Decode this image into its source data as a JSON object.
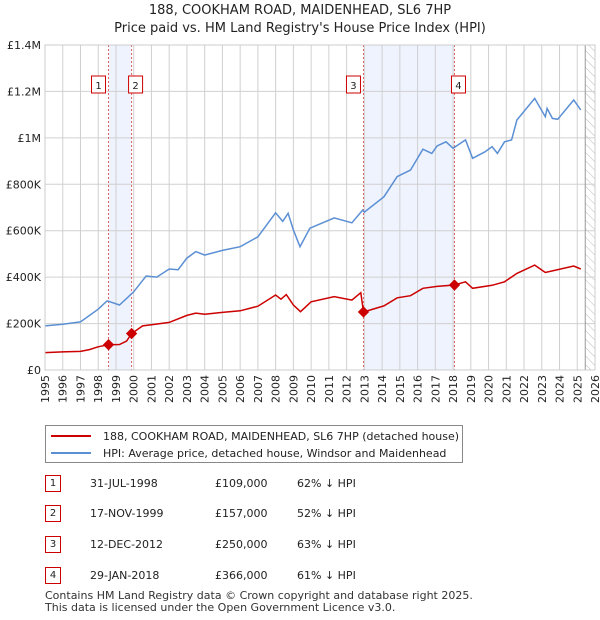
{
  "chart_data": {
    "type": "line",
    "title": "188, COOKHAM ROAD, MAIDENHEAD, SL6 7HP",
    "subtitle": "Price paid vs. HM Land Registry's House Price Index (HPI)",
    "xlim": [
      1995,
      2026
    ],
    "ylim": [
      0,
      1400000
    ],
    "x_ticks": [
      "1995",
      "1996",
      "1997",
      "1998",
      "1999",
      "2000",
      "2001",
      "2002",
      "2003",
      "2004",
      "2005",
      "2006",
      "2007",
      "2008",
      "2009",
      "2010",
      "2011",
      "2012",
      "2013",
      "2014",
      "2015",
      "2016",
      "2017",
      "2018",
      "2019",
      "2020",
      "2021",
      "2022",
      "2023",
      "2024",
      "2025",
      "2026"
    ],
    "y_ticks": [
      {
        "v": 0,
        "label": "£0"
      },
      {
        "v": 200000,
        "label": "£200K"
      },
      {
        "v": 400000,
        "label": "£400K"
      },
      {
        "v": 600000,
        "label": "£600K"
      },
      {
        "v": 800000,
        "label": "£800K"
      },
      {
        "v": 1000000,
        "label": "£1M"
      },
      {
        "v": 1200000,
        "label": "£1.2M"
      },
      {
        "v": 1400000,
        "label": "£1.4M"
      }
    ],
    "grid": true,
    "forecast_hatch_from": 2025.45,
    "series": [
      {
        "name": "188, COOKHAM ROAD, MAIDENHEAD, SL6 7HP (detached house)",
        "color": "#cc0000",
        "points": [
          [
            1995,
            75000
          ],
          [
            1996,
            78000
          ],
          [
            1997,
            80000
          ],
          [
            1997.5,
            88000
          ],
          [
            1998,
            100000
          ],
          [
            1998.58,
            109000
          ],
          [
            1999.2,
            110000
          ],
          [
            1999.6,
            125000
          ],
          [
            1999.88,
            157000
          ],
          [
            2000.5,
            190000
          ],
          [
            2001,
            195000
          ],
          [
            2002,
            205000
          ],
          [
            2003,
            235000
          ],
          [
            2003.5,
            245000
          ],
          [
            2004,
            240000
          ],
          [
            2005,
            248000
          ],
          [
            2006,
            255000
          ],
          [
            2007,
            275000
          ],
          [
            2008,
            323000
          ],
          [
            2008.3,
            305000
          ],
          [
            2008.6,
            325000
          ],
          [
            2009,
            280000
          ],
          [
            2009.4,
            251000
          ],
          [
            2010,
            294000
          ],
          [
            2011.3,
            316000
          ],
          [
            2012.3,
            301000
          ],
          [
            2012.8,
            333000
          ],
          [
            2012.95,
            250000
          ],
          [
            2014.1,
            276000
          ],
          [
            2014.85,
            311000
          ],
          [
            2015.6,
            320000
          ],
          [
            2016.3,
            352000
          ],
          [
            2017.1,
            360000
          ],
          [
            2018.08,
            366000
          ],
          [
            2018.7,
            380000
          ],
          [
            2019.1,
            352000
          ],
          [
            2020.2,
            365000
          ],
          [
            2020.9,
            380000
          ],
          [
            2021.6,
            416000
          ],
          [
            2022.6,
            452000
          ],
          [
            2023.2,
            420000
          ],
          [
            2023.6,
            427000
          ],
          [
            2024.8,
            448000
          ],
          [
            2025.2,
            435000
          ]
        ]
      },
      {
        "name": "HPI: Average price, detached house, Windsor and Maidenhead",
        "color": "#5b8fd4",
        "points": [
          [
            1995,
            190000
          ],
          [
            1996,
            197000
          ],
          [
            1997,
            207000
          ],
          [
            1998,
            262000
          ],
          [
            1998.5,
            298000
          ],
          [
            1999.2,
            280000
          ],
          [
            2000,
            337000
          ],
          [
            2000.7,
            405000
          ],
          [
            2001.3,
            400000
          ],
          [
            2002,
            435000
          ],
          [
            2002.5,
            432000
          ],
          [
            2003,
            482000
          ],
          [
            2003.5,
            510000
          ],
          [
            2004,
            495000
          ],
          [
            2005,
            515000
          ],
          [
            2006,
            531000
          ],
          [
            2007,
            574000
          ],
          [
            2008,
            677000
          ],
          [
            2008.4,
            640000
          ],
          [
            2008.7,
            675000
          ],
          [
            2009,
            603000
          ],
          [
            2009.37,
            531000
          ],
          [
            2009.93,
            611000
          ],
          [
            2011.3,
            655000
          ],
          [
            2012.3,
            634000
          ],
          [
            2012.9,
            689000
          ],
          [
            2013,
            680000
          ],
          [
            2014.1,
            746000
          ],
          [
            2014.85,
            833000
          ],
          [
            2015.6,
            861000
          ],
          [
            2016.3,
            951000
          ],
          [
            2016.8,
            933000
          ],
          [
            2017.1,
            965000
          ],
          [
            2017.6,
            983000
          ],
          [
            2018.0,
            955000
          ],
          [
            2018.7,
            991000
          ],
          [
            2019.1,
            912000
          ],
          [
            2019.8,
            940000
          ],
          [
            2020.2,
            962000
          ],
          [
            2020.5,
            933000
          ],
          [
            2020.9,
            983000
          ],
          [
            2021.3,
            991000
          ],
          [
            2021.6,
            1077000
          ],
          [
            2022.6,
            1170000
          ],
          [
            2023.2,
            1091000
          ],
          [
            2023.3,
            1127000
          ],
          [
            2023.6,
            1084000
          ],
          [
            2023.9,
            1080000
          ],
          [
            2024.8,
            1163000
          ],
          [
            2025.2,
            1120000
          ]
        ]
      }
    ],
    "sales": [
      {
        "n": "1",
        "x": 1998.58,
        "value": 109000
      },
      {
        "n": "2",
        "x": 1999.88,
        "value": 157000
      },
      {
        "n": "3",
        "x": 2012.95,
        "value": 250000
      },
      {
        "n": "4",
        "x": 2018.08,
        "value": 366000
      }
    ],
    "shaded_ranges": [
      [
        1998.58,
        1999.88
      ],
      [
        2012.95,
        2018.08
      ]
    ]
  },
  "legend": {
    "red_label": "188, COOKHAM ROAD, MAIDENHEAD, SL6 7HP (detached house)",
    "blue_label": "HPI: Average price, detached house, Windsor and Maidenhead"
  },
  "table": [
    {
      "n": "1",
      "date": "31-JUL-1998",
      "price": "£109,000",
      "hpi": "62% ↓ HPI"
    },
    {
      "n": "2",
      "date": "17-NOV-1999",
      "price": "£157,000",
      "hpi": "52% ↓ HPI"
    },
    {
      "n": "3",
      "date": "12-DEC-2012",
      "price": "£250,000",
      "hpi": "63% ↓ HPI"
    },
    {
      "n": "4",
      "date": "29-JAN-2018",
      "price": "£366,000",
      "hpi": "61% ↓ HPI"
    }
  ],
  "footer": {
    "line1": "Contains HM Land Registry data © Crown copyright and database right 2025.",
    "line2": "This data is licensed under the Open Government Licence v3.0."
  }
}
